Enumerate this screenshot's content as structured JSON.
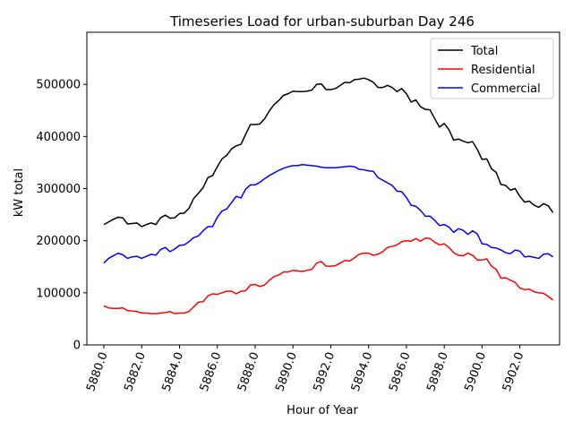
{
  "chart_data": {
    "type": "line",
    "title": "Timeseries Load for urban-suburban   Day 246",
    "xlabel": "Hour of Year",
    "ylabel": "kW total",
    "xlim": [
      5879.1,
      5904.1
    ],
    "ylim": [
      0,
      600000
    ],
    "xticks": [
      5880,
      5882,
      5884,
      5886,
      5888,
      5890,
      5892,
      5894,
      5896,
      5898,
      5900,
      5902
    ],
    "xtick_labels": [
      "5880.0",
      "5882.0",
      "5884.0",
      "5886.0",
      "5888.0",
      "5890.0",
      "5892.0",
      "5894.0",
      "5896.0",
      "5898.0",
      "5900.0",
      "5902.0"
    ],
    "yticks": [
      0,
      100000,
      200000,
      300000,
      400000,
      500000
    ],
    "ytick_labels": [
      "0",
      "100000",
      "200000",
      "300000",
      "400000",
      "500000"
    ],
    "legend_position": "top-right",
    "grid": false,
    "x_start": 5880,
    "x_step": 0.25,
    "series": [
      {
        "name": "Total",
        "color": "#000000",
        "values": [
          231000,
          236000,
          241000,
          245000,
          244000,
          232000,
          233000,
          234000,
          227000,
          231000,
          234000,
          231000,
          244000,
          249000,
          243000,
          244000,
          252000,
          253000,
          262000,
          281000,
          291000,
          302000,
          321000,
          325000,
          342000,
          357000,
          364000,
          376000,
          382000,
          385000,
          404000,
          423000,
          423000,
          424000,
          434000,
          449000,
          461000,
          469000,
          479000,
          482000,
          487000,
          486000,
          486000,
          487000,
          489000,
          500000,
          501000,
          490000,
          490000,
          492000,
          498000,
          504000,
          503000,
          509000,
          510000,
          512000,
          509000,
          504000,
          494000,
          494000,
          498000,
          494000,
          486000,
          492000,
          482000,
          466000,
          470000,
          457000,
          452000,
          451000,
          434000,
          418000,
          425000,
          413000,
          393000,
          395000,
          391000,
          388000,
          390000,
          375000,
          356000,
          357000,
          338000,
          331000,
          308000,
          306000,
          297000,
          300000,
          285000,
          274000,
          276000,
          268000,
          264000,
          271000,
          267000,
          254000
        ]
      },
      {
        "name": "Residential",
        "color": "#ff0000",
        "values": [
          75000,
          71000,
          70000,
          70000,
          71000,
          66000,
          65000,
          64000,
          61000,
          61000,
          60000,
          60000,
          61000,
          62000,
          64000,
          60000,
          61000,
          61000,
          64000,
          73000,
          82000,
          83000,
          94000,
          98000,
          97000,
          100000,
          103000,
          103000,
          98000,
          103000,
          104000,
          115000,
          116000,
          112000,
          115000,
          124000,
          131000,
          134000,
          140000,
          140000,
          143000,
          142000,
          141000,
          143000,
          145000,
          157000,
          160000,
          151000,
          151000,
          152000,
          157000,
          162000,
          161000,
          167000,
          174000,
          176000,
          176000,
          172000,
          174000,
          179000,
          187000,
          189000,
          192000,
          198000,
          200000,
          199000,
          204000,
          199000,
          205000,
          204000,
          197000,
          192000,
          194000,
          187000,
          177000,
          172000,
          171000,
          176000,
          172000,
          163000,
          163000,
          165000,
          151000,
          145000,
          128000,
          129000,
          124000,
          120000,
          109000,
          106000,
          107000,
          102000,
          100000,
          99000,
          93000,
          86000
        ]
      },
      {
        "name": "Commercial",
        "color": "#0000ff",
        "values": [
          157000,
          166000,
          171000,
          176000,
          173000,
          166000,
          169000,
          170000,
          166000,
          170000,
          174000,
          172000,
          183000,
          187000,
          179000,
          184000,
          191000,
          192000,
          198000,
          206000,
          209000,
          219000,
          227000,
          227000,
          245000,
          257000,
          261000,
          273000,
          285000,
          282000,
          299000,
          307000,
          307000,
          312000,
          319000,
          325000,
          330000,
          335000,
          339000,
          342000,
          344000,
          344000,
          346000,
          345000,
          344000,
          343000,
          341000,
          340000,
          340000,
          340000,
          341000,
          342000,
          343000,
          342000,
          337000,
          336000,
          334000,
          333000,
          321000,
          316000,
          311000,
          306000,
          295000,
          294000,
          283000,
          268000,
          266000,
          258000,
          247000,
          247000,
          239000,
          229000,
          231000,
          226000,
          216000,
          223000,
          220000,
          212000,
          219000,
          213000,
          194000,
          193000,
          187000,
          186000,
          182000,
          177000,
          175000,
          182000,
          180000,
          169000,
          170000,
          168000,
          166000,
          174000,
          175000,
          169000
        ]
      }
    ]
  }
}
